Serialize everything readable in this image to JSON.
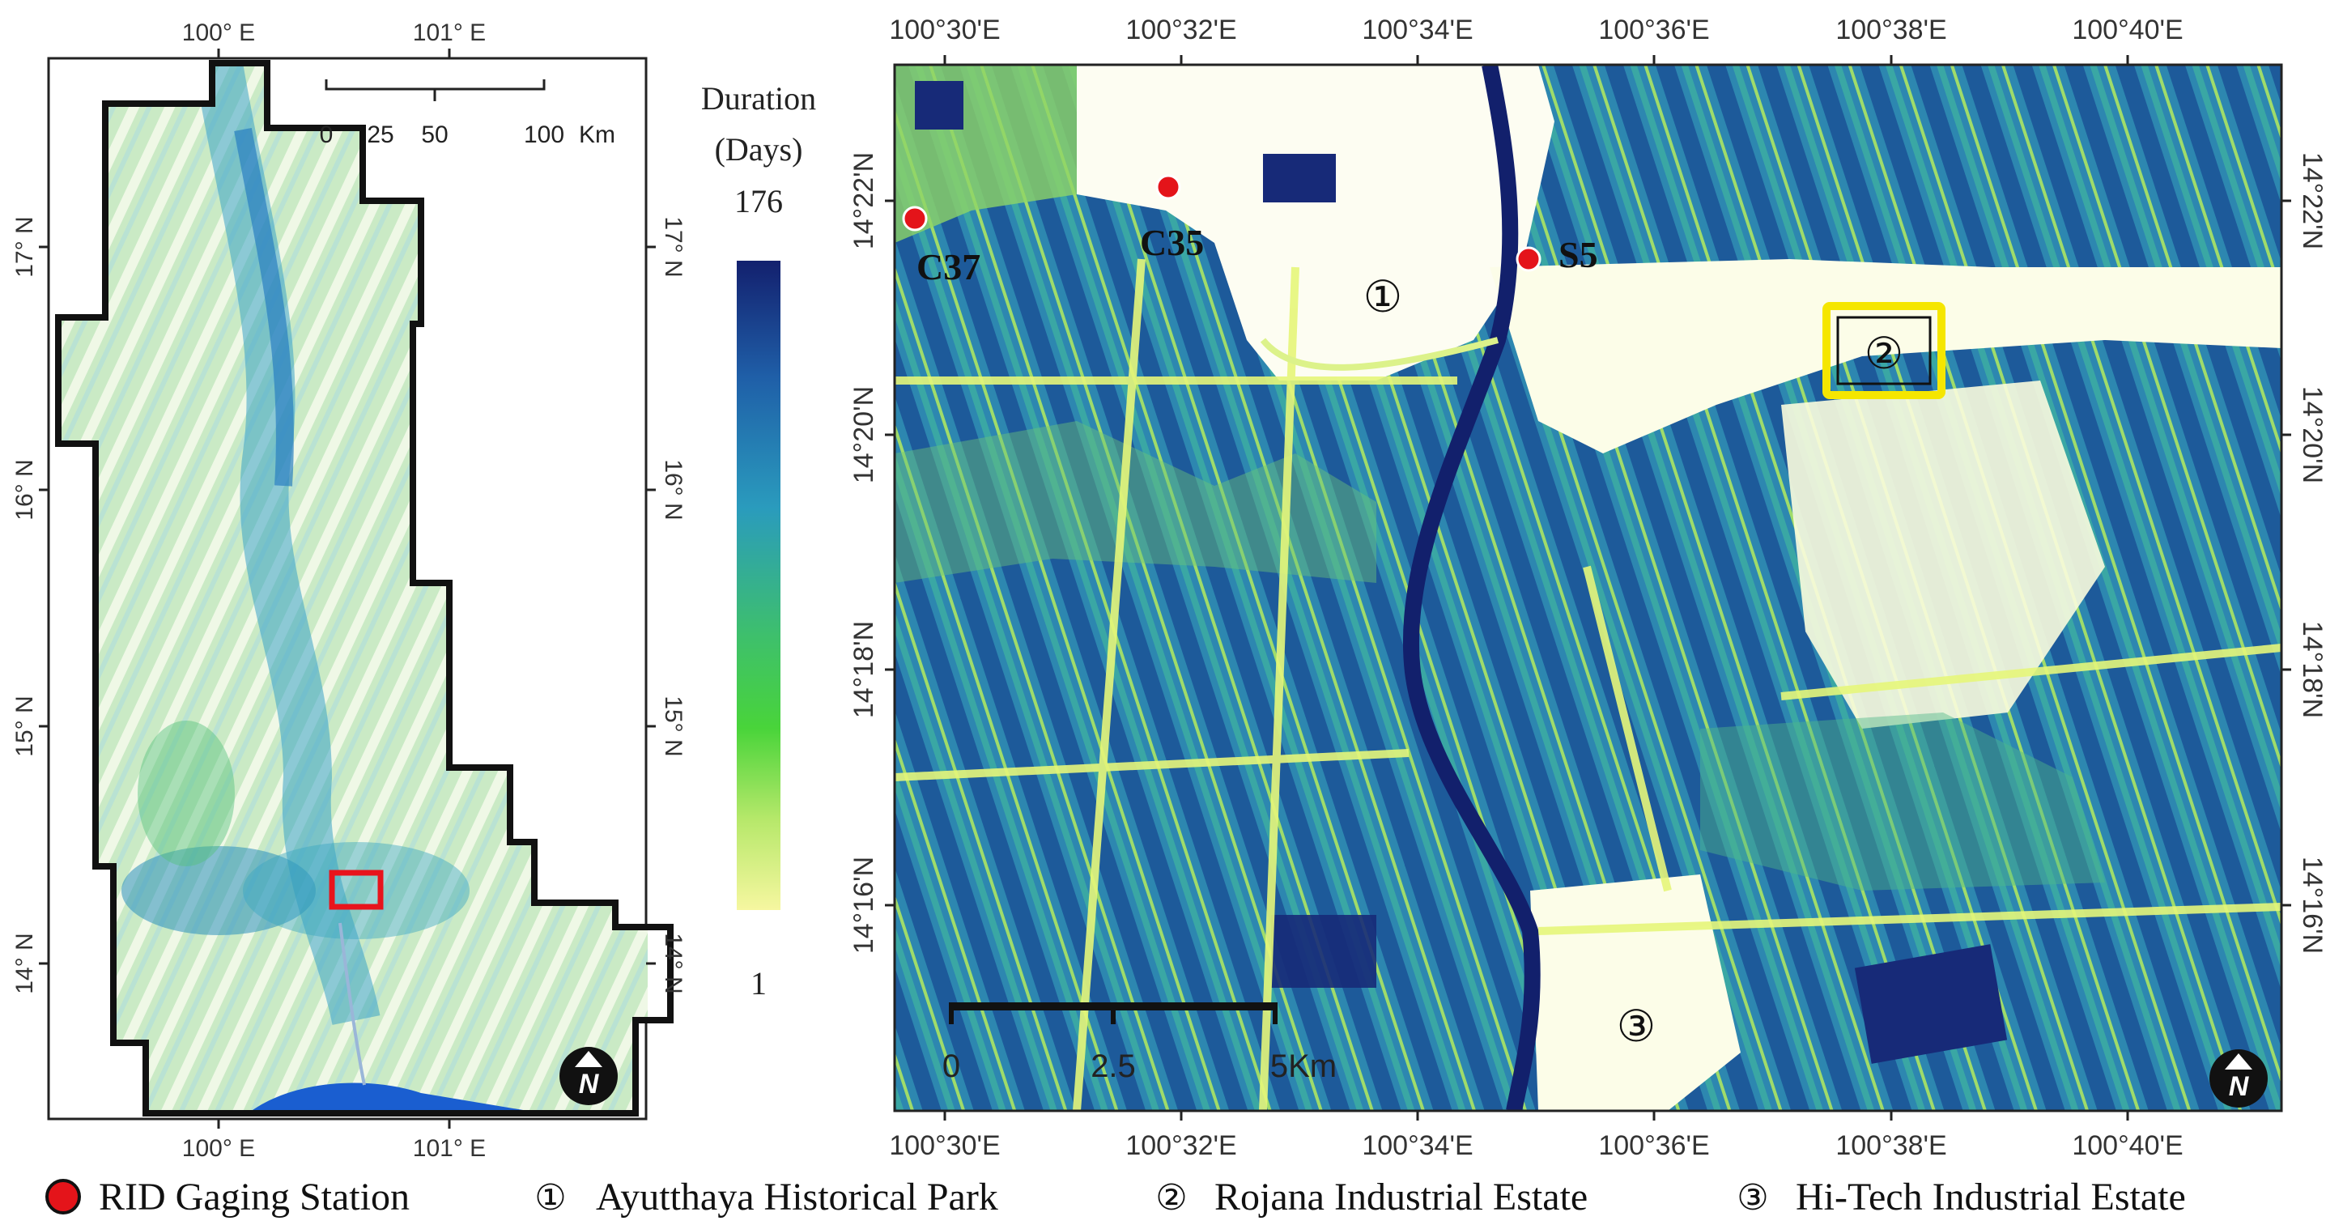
{
  "left_map": {
    "top_ticks": [
      "100° E",
      "101° E"
    ],
    "bottom_ticks": [
      "100° E",
      "101° E"
    ],
    "left_ticks": [
      "17° N",
      "16° N",
      "15° N",
      "14° N"
    ],
    "right_ticks": [
      "17° N",
      "16° N",
      "15° N",
      "14° N"
    ],
    "scale_labels": [
      "0",
      "25",
      "50",
      "100",
      "Km"
    ],
    "north_label": "N",
    "study_area_box_color": "#e8141c"
  },
  "colorbar": {
    "title_line1": "Duration",
    "title_line2": "(Days)",
    "max_label": "176",
    "min_label": "1",
    "colors": [
      "#13206e",
      "#1f5fa8",
      "#2a9bbd",
      "#3ec06b",
      "#49d43a",
      "#b6e86a",
      "#f6f7a0"
    ]
  },
  "right_map": {
    "top_ticks": [
      "100°30'E",
      "100°32'E",
      "100°34'E",
      "100°36'E",
      "100°38'E",
      "100°40'E"
    ],
    "bottom_ticks": [
      "100°30'E",
      "100°32'E",
      "100°34'E",
      "100°36'E",
      "100°38'E",
      "100°40'E"
    ],
    "left_ticks": [
      "14°22'N",
      "14°20'N",
      "14°18'N",
      "14°16'N"
    ],
    "right_ticks": [
      "14°22'N",
      "14°20'N",
      "14°18'N",
      "14°16'N"
    ],
    "stations": [
      "C37",
      "C35",
      "S5"
    ],
    "sites": [
      "①",
      "②",
      "③"
    ],
    "scale_labels": [
      "0",
      "2.5",
      "5Km"
    ],
    "north_label": "N",
    "highlight_box_color": "#f5e600",
    "station_color": "#e4141a"
  },
  "legend": {
    "station_label": "RID Gaging Station",
    "item1_symbol": "①",
    "item1_label": "Ayutthaya Historical Park",
    "item2_symbol": "②",
    "item2_label": "Rojana Industrial Estate",
    "item3_symbol": "③",
    "item3_label": "Hi-Tech Industrial Estate"
  }
}
